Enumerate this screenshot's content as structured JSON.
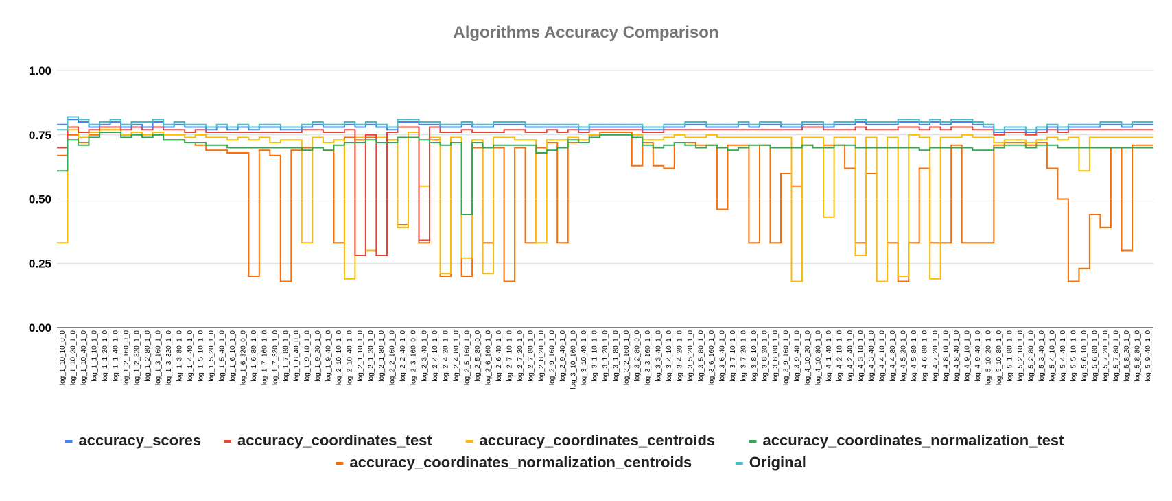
{
  "chart_data": {
    "type": "line",
    "title": "Algorithms Accuracy Comparison",
    "xlabel": "",
    "ylabel": "",
    "ylim": [
      0,
      1
    ],
    "yticks": [
      "0.00",
      "0.25",
      "0.50",
      "0.75",
      "1.00"
    ],
    "grid": true,
    "legend_position": "bottom",
    "x_tick_labels": [
      "log_1_10_10_0_0",
      "log_1_10_20_1_0",
      "log_1_10_40_1_0",
      "log_1_1_10_1_0",
      "log_1_1_20_1_0",
      "log_1_1_40_1_0",
      "log_1_2_160_0_0",
      "log_1_2_320_1_0",
      "log_1_2_80_1_0",
      "log_1_3_160_1_0",
      "log_1_3_320_1_0",
      "log_1_3_80_1_0",
      "log_1_4_40_1_0",
      "log_1_5_10_1_0",
      "log_1_5_20_1_0",
      "log_1_5_40_1_0",
      "log_1_6_10_1_0",
      "log_1_6_320_0_0",
      "log_1_6_80_1_0",
      "log_1_7_160_1_0",
      "log_1_7_320_1_0",
      "log_1_7_80_1_0",
      "log_1_8_40_0_0",
      "log_1_9_10_1_0",
      "log_1_9_20_1_0",
      "log_1_9_40_1_0",
      "log_2_10_10_1_0",
      "log_2_10_40_1_0",
      "log_2_1_10_1_0",
      "log_2_1_20_1_0",
      "log_2_1_80_1_0",
      "log_2_2_160_1_0",
      "log_2_2_40_1_0",
      "log_2_3_160_0_0",
      "log_2_3_40_1_0",
      "log_2_4_10_1_0",
      "log_2_4_20_1_0",
      "log_2_4_80_1_0",
      "log_2_5_160_1_0",
      "log_2_5_80_0_0",
      "log_2_6_160_1_0",
      "log_2_6_40_1_0",
      "log_2_7_10_1_0",
      "log_2_7_20_1_0",
      "log_2_7_80_1_0",
      "log_2_8_20_1_0",
      "log_2_9_160_1_0",
      "log_2_9_40_1_0",
      "log_3_10_160_1_0",
      "log_3_10_40_1_0",
      "log_3_1_10_1_0",
      "log_3_1_20_1_0",
      "log_3_1_80_1_0",
      "log_3_2_160_1_0",
      "log_3_2_80_0_0",
      "log_3_3_160_1_0",
      "log_3_3_40_1_0",
      "log_3_4_10_1_0",
      "log_3_4_20_1_0",
      "log_3_5_20_1_0",
      "log_3_5_80_1_0",
      "log_3_6_160_1_0",
      "log_3_6_40_1_0",
      "log_3_7_10_1_0",
      "log_3_7_20_1_0",
      "log_3_8_10_1_0",
      "log_3_8_20_1_0",
      "log_3_8_80_1_0",
      "log_3_9_160_1_0",
      "log_3_9_40_1_0",
      "log_4_10_20_1_0",
      "log_4_10_80_1_0",
      "log_4_1_40_1_0",
      "log_4_2_10_1_0",
      "log_4_2_40_1_0",
      "log_4_3_10_1_0",
      "log_4_3_40_1_0",
      "log_4_4_10_1_0",
      "log_4_4_80_1_0",
      "log_4_5_20_1_0",
      "log_4_5_80_1_0",
      "log_4_6_80_1_0",
      "log_4_7_20_1_0",
      "log_4_8_10_1_0",
      "log_4_8_40_1_0",
      "log_4_9_10_1_0",
      "log_4_9_40_1_0",
      "log_5_10_20_1_0",
      "log_5_10_80_1_0",
      "log_5_1_80_1_0",
      "log_5_2_10_1_0",
      "log_5_2_80_1_0",
      "log_5_3_40_1_0",
      "log_5_4_10_1_0",
      "log_5_4_40_1_0",
      "log_5_5_10_1_0",
      "log_5_6_10_1_0",
      "log_5_6_80_1_0",
      "log_5_7_20_1_0",
      "log_5_7_80_1_0",
      "log_5_8_20_1_0",
      "log_5_8_80_1_0",
      "log_5_9_40_1_0"
    ],
    "series": [
      {
        "name": "accuracy_scores",
        "color": "#4285f4",
        "values": [
          0.79,
          0.81,
          0.8,
          0.78,
          0.79,
          0.8,
          0.78,
          0.79,
          0.78,
          0.8,
          0.78,
          0.79,
          0.78,
          0.78,
          0.77,
          0.78,
          0.77,
          0.78,
          0.77,
          0.78,
          0.78,
          0.77,
          0.77,
          0.78,
          0.79,
          0.78,
          0.78,
          0.79,
          0.78,
          0.79,
          0.78,
          0.77,
          0.8,
          0.8,
          0.79,
          0.79,
          0.78,
          0.78,
          0.79,
          0.78,
          0.78,
          0.79,
          0.79,
          0.79,
          0.78,
          0.78,
          0.78,
          0.78,
          0.78,
          0.77,
          0.78,
          0.78,
          0.78,
          0.78,
          0.78,
          0.77,
          0.77,
          0.78,
          0.78,
          0.79,
          0.79,
          0.78,
          0.78,
          0.78,
          0.79,
          0.78,
          0.79,
          0.79,
          0.78,
          0.78,
          0.79,
          0.79,
          0.78,
          0.79,
          0.79,
          0.8,
          0.79,
          0.79,
          0.79,
          0.8,
          0.8,
          0.79,
          0.8,
          0.79,
          0.8,
          0.8,
          0.79,
          0.78,
          0.76,
          0.77,
          0.77,
          0.76,
          0.77,
          0.78,
          0.77,
          0.78,
          0.78,
          0.78,
          0.79,
          0.79,
          0.78,
          0.79,
          0.79
        ]
      },
      {
        "name": "accuracy_coordinates_test",
        "color": "#ea4335",
        "values": [
          0.7,
          0.78,
          0.76,
          0.77,
          0.78,
          0.78,
          0.77,
          0.78,
          0.77,
          0.78,
          0.77,
          0.77,
          0.76,
          0.77,
          0.76,
          0.76,
          0.76,
          0.76,
          0.76,
          0.76,
          0.76,
          0.76,
          0.76,
          0.77,
          0.77,
          0.76,
          0.76,
          0.77,
          0.28,
          0.75,
          0.28,
          0.76,
          0.78,
          0.78,
          0.34,
          0.78,
          0.76,
          0.76,
          0.77,
          0.76,
          0.76,
          0.76,
          0.77,
          0.77,
          0.76,
          0.76,
          0.77,
          0.76,
          0.77,
          0.76,
          0.77,
          0.77,
          0.77,
          0.77,
          0.77,
          0.76,
          0.76,
          0.77,
          0.77,
          0.77,
          0.77,
          0.77,
          0.77,
          0.77,
          0.77,
          0.77,
          0.77,
          0.77,
          0.77,
          0.77,
          0.78,
          0.78,
          0.77,
          0.77,
          0.77,
          0.78,
          0.77,
          0.77,
          0.77,
          0.78,
          0.78,
          0.77,
          0.78,
          0.77,
          0.78,
          0.78,
          0.77,
          0.77,
          0.75,
          0.76,
          0.76,
          0.75,
          0.76,
          0.77,
          0.76,
          0.77,
          0.77,
          0.77,
          0.77,
          0.77,
          0.77,
          0.77,
          0.77
        ]
      },
      {
        "name": "accuracy_coordinates_centroids",
        "color": "#fbbc04",
        "values": [
          0.33,
          0.77,
          0.74,
          0.76,
          0.77,
          0.77,
          0.75,
          0.76,
          0.75,
          0.76,
          0.75,
          0.75,
          0.74,
          0.75,
          0.74,
          0.74,
          0.73,
          0.74,
          0.73,
          0.74,
          0.72,
          0.73,
          0.73,
          0.33,
          0.74,
          0.72,
          0.73,
          0.19,
          0.74,
          0.3,
          0.74,
          0.73,
          0.39,
          0.76,
          0.55,
          0.74,
          0.21,
          0.74,
          0.27,
          0.73,
          0.21,
          0.74,
          0.74,
          0.73,
          0.73,
          0.33,
          0.73,
          0.73,
          0.74,
          0.73,
          0.75,
          0.75,
          0.75,
          0.75,
          0.75,
          0.73,
          0.73,
          0.74,
          0.75,
          0.74,
          0.74,
          0.75,
          0.74,
          0.74,
          0.74,
          0.74,
          0.74,
          0.74,
          0.74,
          0.18,
          0.74,
          0.74,
          0.43,
          0.74,
          0.74,
          0.28,
          0.74,
          0.18,
          0.74,
          0.2,
          0.75,
          0.74,
          0.19,
          0.74,
          0.74,
          0.75,
          0.74,
          0.74,
          0.72,
          0.73,
          0.73,
          0.72,
          0.73,
          0.74,
          0.73,
          0.74,
          0.61,
          0.74,
          0.74,
          0.74,
          0.74,
          0.74,
          0.74
        ]
      },
      {
        "name": "accuracy_coordinates_normalization_test",
        "color": "#34a853",
        "values": [
          0.61,
          0.73,
          0.71,
          0.74,
          0.76,
          0.76,
          0.74,
          0.75,
          0.74,
          0.75,
          0.73,
          0.73,
          0.72,
          0.72,
          0.71,
          0.71,
          0.7,
          0.7,
          0.7,
          0.7,
          0.7,
          0.7,
          0.7,
          0.69,
          0.7,
          0.69,
          0.71,
          0.72,
          0.72,
          0.73,
          0.72,
          0.72,
          0.74,
          0.74,
          0.73,
          0.72,
          0.71,
          0.72,
          0.44,
          0.72,
          0.7,
          0.71,
          0.71,
          0.71,
          0.71,
          0.68,
          0.69,
          0.7,
          0.73,
          0.72,
          0.74,
          0.75,
          0.75,
          0.75,
          0.74,
          0.71,
          0.7,
          0.71,
          0.72,
          0.71,
          0.7,
          0.71,
          0.7,
          0.69,
          0.7,
          0.71,
          0.71,
          0.7,
          0.7,
          0.7,
          0.71,
          0.7,
          0.7,
          0.71,
          0.71,
          0.7,
          0.7,
          0.7,
          0.7,
          0.7,
          0.7,
          0.69,
          0.7,
          0.7,
          0.7,
          0.7,
          0.69,
          0.69,
          0.7,
          0.71,
          0.71,
          0.7,
          0.71,
          0.71,
          0.7,
          0.7,
          0.7,
          0.7,
          0.7,
          0.7,
          0.7,
          0.7,
          0.7
        ]
      },
      {
        "name": "accuracy_coordinates_normalization_centroids",
        "color": "#ff6d01",
        "values": [
          0.67,
          0.75,
          0.72,
          0.75,
          0.77,
          0.77,
          0.75,
          0.76,
          0.74,
          0.75,
          0.73,
          0.73,
          0.72,
          0.71,
          0.69,
          0.69,
          0.68,
          0.68,
          0.2,
          0.69,
          0.67,
          0.18,
          0.69,
          0.7,
          0.7,
          0.69,
          0.33,
          0.74,
          0.73,
          0.74,
          0.72,
          0.73,
          0.4,
          0.74,
          0.33,
          0.73,
          0.2,
          0.72,
          0.2,
          0.7,
          0.33,
          0.7,
          0.18,
          0.7,
          0.33,
          0.7,
          0.72,
          0.33,
          0.72,
          0.72,
          0.75,
          0.76,
          0.76,
          0.76,
          0.63,
          0.72,
          0.63,
          0.62,
          0.72,
          0.72,
          0.71,
          0.71,
          0.46,
          0.71,
          0.71,
          0.33,
          0.71,
          0.33,
          0.6,
          0.55,
          0.71,
          0.7,
          0.71,
          0.71,
          0.62,
          0.33,
          0.6,
          0.18,
          0.33,
          0.18,
          0.33,
          0.62,
          0.33,
          0.33,
          0.71,
          0.33,
          0.33,
          0.33,
          0.71,
          0.72,
          0.72,
          0.71,
          0.72,
          0.62,
          0.5,
          0.18,
          0.23,
          0.44,
          0.39,
          0.7,
          0.3,
          0.71,
          0.71
        ]
      },
      {
        "name": "Original",
        "color": "#46bdc6",
        "values": [
          0.77,
          0.82,
          0.81,
          0.79,
          0.8,
          0.81,
          0.79,
          0.8,
          0.8,
          0.81,
          0.79,
          0.8,
          0.79,
          0.79,
          0.78,
          0.79,
          0.78,
          0.79,
          0.78,
          0.79,
          0.79,
          0.78,
          0.78,
          0.79,
          0.8,
          0.79,
          0.79,
          0.8,
          0.79,
          0.8,
          0.79,
          0.78,
          0.81,
          0.81,
          0.8,
          0.8,
          0.79,
          0.79,
          0.8,
          0.79,
          0.79,
          0.8,
          0.8,
          0.8,
          0.79,
          0.79,
          0.79,
          0.79,
          0.79,
          0.78,
          0.79,
          0.79,
          0.79,
          0.79,
          0.79,
          0.78,
          0.78,
          0.79,
          0.79,
          0.8,
          0.8,
          0.79,
          0.79,
          0.79,
          0.8,
          0.79,
          0.8,
          0.8,
          0.79,
          0.79,
          0.8,
          0.8,
          0.79,
          0.8,
          0.8,
          0.81,
          0.8,
          0.8,
          0.8,
          0.81,
          0.81,
          0.8,
          0.81,
          0.8,
          0.81,
          0.81,
          0.8,
          0.79,
          0.77,
          0.78,
          0.78,
          0.77,
          0.78,
          0.79,
          0.78,
          0.79,
          0.79,
          0.79,
          0.8,
          0.8,
          0.79,
          0.8,
          0.8
        ]
      }
    ]
  }
}
